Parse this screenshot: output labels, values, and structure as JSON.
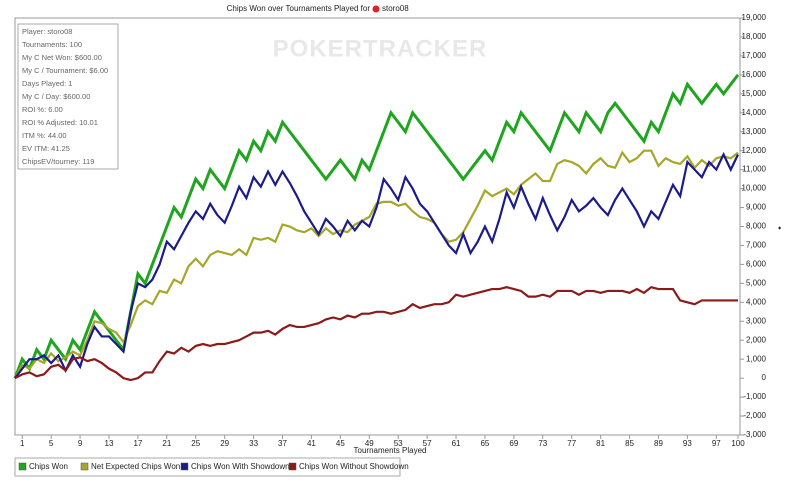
{
  "chart_data": {
    "type": "line",
    "title": "Chips Won over Tournaments Played for",
    "title_player": "storo08",
    "watermark": "POKERTRACKER",
    "xlabel": "Tournaments Played",
    "annotations": [
      "Player: storo08",
      "Tournaments: 100",
      "My C Net Won: $600.00",
      "My C / Tournament: $6.00",
      "Days Played: 1",
      "My C / Day: $600.00",
      "ROI %: 6.00",
      "ROI % Adjusted: 10.01",
      "ITM %: 44.00",
      "EV ITM: 41.25",
      "ChipsEV/tourney: 119"
    ],
    "x": [
      0,
      1,
      2,
      3,
      4,
      5,
      6,
      7,
      8,
      9,
      10,
      11,
      12,
      13,
      14,
      15,
      16,
      17,
      18,
      19,
      20,
      21,
      22,
      23,
      24,
      25,
      26,
      27,
      28,
      29,
      30,
      31,
      32,
      33,
      34,
      35,
      36,
      37,
      38,
      39,
      40,
      41,
      42,
      43,
      44,
      45,
      46,
      47,
      48,
      49,
      50,
      51,
      52,
      53,
      54,
      55,
      56,
      57,
      58,
      59,
      60,
      61,
      62,
      63,
      64,
      65,
      66,
      67,
      68,
      69,
      70,
      71,
      72,
      73,
      74,
      75,
      76,
      77,
      78,
      79,
      80,
      81,
      82,
      83,
      84,
      85,
      86,
      87,
      88,
      89,
      90,
      91,
      92,
      93,
      94,
      95,
      96,
      97,
      98,
      99,
      100
    ],
    "series": [
      {
        "name": "Chips Won",
        "color": "#1fa51f",
        "values": [
          0,
          1000,
          500,
          1500,
          1000,
          2000,
          1500,
          1000,
          2000,
          1500,
          2500,
          3500,
          3000,
          2500,
          2000,
          1500,
          3500,
          5500,
          5000,
          6000,
          7000,
          8000,
          9000,
          8500,
          9500,
          10500,
          10000,
          11000,
          10500,
          10000,
          11000,
          12000,
          11500,
          12500,
          12000,
          13000,
          12500,
          13500,
          13000,
          12500,
          12000,
          11500,
          11000,
          10500,
          11000,
          11500,
          11000,
          10500,
          11500,
          11000,
          12000,
          13000,
          14000,
          13500,
          13000,
          14000,
          13500,
          13000,
          12500,
          12000,
          11500,
          11000,
          10500,
          11000,
          11500,
          12000,
          11500,
          12500,
          13500,
          13000,
          14000,
          13500,
          13000,
          12500,
          12000,
          13000,
          14000,
          13500,
          13000,
          14000,
          13500,
          13000,
          14000,
          14500,
          14000,
          13500,
          13000,
          12500,
          13500,
          13000,
          14000,
          15000,
          14500,
          15500,
          15000,
          14500,
          15000,
          15500,
          15000,
          15500,
          16000
        ]
      },
      {
        "name": "Net Expected Chips Won",
        "color": "#a6a62a",
        "values": [
          0,
          700,
          500,
          1000,
          800,
          1300,
          900,
          1100,
          1400,
          1200,
          2000,
          3000,
          2900,
          2600,
          2400,
          1900,
          2800,
          3800,
          4100,
          3900,
          4600,
          4500,
          5200,
          5000,
          5900,
          6300,
          5900,
          6500,
          6700,
          6600,
          6500,
          6800,
          6500,
          7400,
          7300,
          7400,
          7200,
          8100,
          8000,
          7800,
          7700,
          7900,
          7500,
          7900,
          7600,
          7800,
          7700,
          8100,
          8300,
          8500,
          9200,
          9300,
          9300,
          9100,
          9200,
          8800,
          8500,
          8400,
          8200,
          7600,
          7200,
          7300,
          7700,
          8400,
          9100,
          9900,
          9600,
          9800,
          10000,
          9700,
          10200,
          10500,
          10800,
          10400,
          10400,
          11300,
          11500,
          11400,
          11200,
          10800,
          11300,
          11600,
          11200,
          11100,
          11900,
          11400,
          11600,
          12000,
          12000,
          11200,
          11600,
          11400,
          11300,
          11700,
          11100,
          11500,
          11200,
          11600,
          11700,
          11600,
          11900
        ]
      },
      {
        "name": "Chips Won With Showdown",
        "color": "#1b1b8a",
        "values": [
          0,
          500,
          1000,
          1000,
          1200,
          800,
          1200,
          400,
          1200,
          600,
          1800,
          2700,
          2200,
          2200,
          1800,
          1400,
          3500,
          5000,
          4800,
          5200,
          6000,
          7200,
          6800,
          7500,
          8200,
          8800,
          8400,
          9200,
          8600,
          8200,
          9100,
          10100,
          9500,
          10600,
          10100,
          10900,
          10200,
          10900,
          10300,
          9600,
          8800,
          8200,
          7600,
          8400,
          8000,
          7500,
          8300,
          7800,
          8300,
          8000,
          9000,
          10500,
          10000,
          9400,
          10600,
          10000,
          9200,
          8800,
          8200,
          7600,
          7000,
          6600,
          7600,
          6600,
          7200,
          8000,
          7200,
          8400,
          9800,
          9000,
          10100,
          9200,
          8400,
          9500,
          8600,
          7800,
          8500,
          9400,
          8800,
          9100,
          9500,
          9000,
          8600,
          9400,
          10000,
          9400,
          8800,
          8000,
          8800,
          8400,
          9300,
          10200,
          9600,
          11400,
          11000,
          10600,
          11400,
          11000,
          11800,
          11000,
          11800
        ]
      },
      {
        "name": "Chips Won Without Showdown",
        "color": "#8b1a1a",
        "values": [
          0,
          200,
          300,
          100,
          200,
          600,
          700,
          400,
          1000,
          1100,
          900,
          1000,
          800,
          500,
          300,
          0,
          -100,
          0,
          300,
          300,
          900,
          1400,
          1300,
          1600,
          1400,
          1700,
          1800,
          1700,
          1800,
          1800,
          1900,
          2000,
          2200,
          2400,
          2400,
          2500,
          2300,
          2600,
          2800,
          2700,
          2700,
          2800,
          2900,
          3100,
          3200,
          3100,
          3300,
          3200,
          3400,
          3400,
          3500,
          3500,
          3400,
          3500,
          3600,
          3900,
          3700,
          3800,
          3900,
          3900,
          4000,
          4400,
          4300,
          4400,
          4500,
          4600,
          4700,
          4700,
          4800,
          4700,
          4600,
          4300,
          4300,
          4400,
          4300,
          4600,
          4600,
          4600,
          4400,
          4600,
          4600,
          4500,
          4600,
          4600,
          4600,
          4500,
          4700,
          4500,
          4800,
          4700,
          4700,
          4700,
          4100,
          4000,
          3900,
          4100,
          4100,
          4100,
          4100,
          4100,
          4100
        ]
      }
    ],
    "xlim": [
      0,
      100
    ],
    "xticks": [
      1,
      5,
      9,
      13,
      17,
      21,
      25,
      29,
      33,
      37,
      41,
      45,
      49,
      53,
      57,
      61,
      65,
      69,
      73,
      77,
      81,
      85,
      89,
      93,
      97,
      100
    ],
    "ylim": [
      -3000,
      19000
    ],
    "yticks": [
      {
        "value": -3000,
        "label": "-3,000"
      },
      {
        "value": -2000,
        "label": "-2,000"
      },
      {
        "value": -1000,
        "label": "-1,000"
      },
      0,
      {
        "value": 1000,
        "label": "1,000"
      },
      {
        "value": 2000,
        "label": "2,000"
      },
      {
        "value": 3000,
        "label": "3,000"
      },
      {
        "value": 4000,
        "label": "4,000"
      },
      {
        "value": 5000,
        "label": "5,000"
      },
      {
        "value": 6000,
        "label": "6,000"
      },
      {
        "value": 7000,
        "label": "7,000"
      },
      {
        "value": 8000,
        "label": "8,000"
      },
      {
        "value": 9000,
        "label": "9,000"
      },
      {
        "value": 10000,
        "label": "10,000"
      },
      {
        "value": 11000,
        "label": "11,000"
      },
      {
        "value": 12000,
        "label": "12,000"
      },
      {
        "value": 13000,
        "label": "13,000"
      },
      {
        "value": 14000,
        "label": "14,000"
      },
      {
        "value": 15000,
        "label": "15,000"
      },
      {
        "value": 16000,
        "label": "16,000"
      },
      {
        "value": 17000,
        "label": "17,000"
      },
      {
        "value": 18000,
        "label": "18,000"
      },
      {
        "value": 19000,
        "label": "19,000"
      }
    ],
    "grid": false
  }
}
